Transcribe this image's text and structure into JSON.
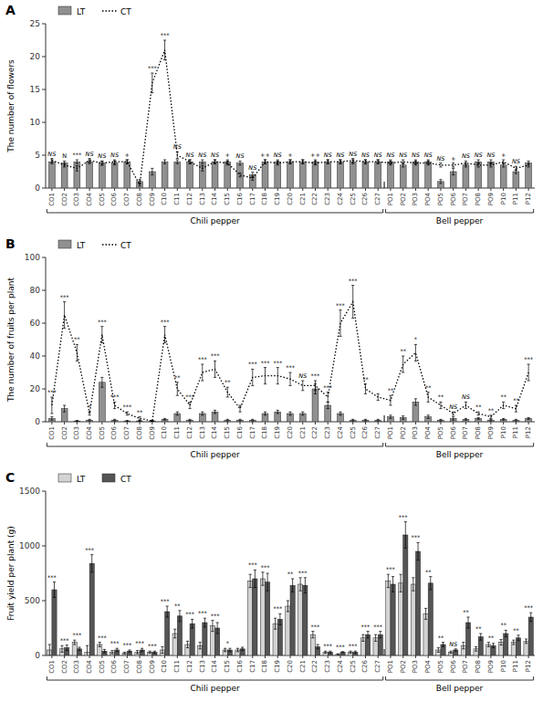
{
  "chart_data": [
    {
      "type": "bar",
      "title": "A",
      "y_label": "The number of flowers",
      "categories": [
        "CO1",
        "CO2",
        "CO3",
        "CO4",
        "CO5",
        "CO6",
        "CO7",
        "CO8",
        "CO9",
        "C10",
        "C11",
        "C12",
        "C13",
        "C14",
        "C15",
        "C16",
        "C17",
        "C18",
        "C19",
        "C20",
        "C21",
        "C22",
        "C23",
        "C24",
        "C25",
        "C26",
        "C27",
        "PO1",
        "PO2",
        "PO3",
        "PO4",
        "PO5",
        "PO6",
        "PO7",
        "PO8",
        "PO9",
        "P10",
        "P11",
        "P12"
      ],
      "series": [
        {
          "name": "LT",
          "type": "bar",
          "color": "#909090",
          "values": [
            4.0,
            3.8,
            4.0,
            4.0,
            3.8,
            3.8,
            4.0,
            1.0,
            2.5,
            4.0,
            4.0,
            4.0,
            4.0,
            4.0,
            4.0,
            3.8,
            2.0,
            4.0,
            4.0,
            4.0,
            4.0,
            4.0,
            4.0,
            4.0,
            4.0,
            4.0,
            4.0,
            4.0,
            3.5,
            4.0,
            4.0,
            1.0,
            2.5,
            3.5,
            4.0,
            4.0,
            3.5,
            2.5,
            3.8
          ],
          "errors": [
            0.3,
            0.3,
            0.3,
            0.3,
            0.3,
            0.3,
            0.3,
            0.3,
            0.5,
            0.3,
            0.3,
            0.3,
            0.3,
            0.3,
            0.3,
            0.3,
            0.4,
            0.3,
            0.3,
            0.3,
            0.3,
            0.3,
            0.3,
            0.3,
            0.3,
            0.3,
            0.3,
            0.3,
            0.3,
            0.3,
            0.3,
            0.3,
            0.5,
            0.3,
            0.3,
            0.3,
            0.3,
            0.3,
            0.3
          ]
        },
        {
          "name": "CT",
          "type": "line",
          "line_style": "dotted",
          "color": "#000000",
          "values": [
            4.2,
            3.5,
            3.0,
            4.2,
            3.8,
            4.0,
            4.0,
            0.5,
            16.0,
            21.0,
            5.0,
            4.0,
            3.0,
            4.0,
            3.8,
            2.0,
            1.5,
            4.0,
            3.8,
            4.0,
            4.0,
            3.8,
            4.0,
            4.0,
            4.2,
            4.0,
            4.0,
            3.8,
            4.0,
            3.8,
            3.8,
            3.5,
            3.5,
            3.8,
            3.5,
            3.5,
            4.0,
            3.0,
            3.5
          ],
          "errors": [
            0.3,
            0.3,
            0.4,
            0.3,
            0.3,
            0.3,
            0.3,
            0.2,
            1.5,
            1.5,
            0.5,
            0.3,
            0.4,
            0.3,
            0.3,
            0.3,
            0.3,
            0.3,
            0.3,
            0.3,
            0.3,
            0.3,
            0.3,
            0.3,
            0.3,
            0.3,
            0.3,
            0.3,
            0.3,
            0.3,
            0.3,
            0.3,
            0.3,
            0.3,
            0.3,
            0.3,
            0.3,
            0.3,
            0.3
          ]
        }
      ],
      "significance": [
        "NS",
        "N",
        "***",
        "NS",
        "NS",
        "NS",
        "+",
        null,
        "***",
        "***",
        "NS",
        "NS",
        "NS",
        "NS",
        "+",
        "NS",
        "NS",
        "++",
        "NS",
        "+",
        null,
        "++",
        "NS",
        "NS",
        "NS",
        "NS",
        "NS",
        "NS",
        "NS",
        "NS",
        "NS",
        "NS",
        "+",
        "NS",
        "NS",
        "NS",
        "+",
        "NS",
        null
      ],
      "groups": [
        {
          "label": "Chili pepper",
          "first": "CO1",
          "last": "C27"
        },
        {
          "label": "Bell pepper",
          "first": "PO1",
          "last": "P12"
        }
      ],
      "ylim": [
        0,
        25
      ],
      "yticks": [
        0,
        5,
        10,
        15,
        20,
        25
      ],
      "grid": false,
      "legend": "upper left"
    },
    {
      "type": "bar",
      "title": "B",
      "y_label": "The number of fruits per plant",
      "categories": [
        "CO1",
        "CO2",
        "CO3",
        "CO4",
        "CO5",
        "CO6",
        "CO7",
        "CO8",
        "CO9",
        "C10",
        "C11",
        "C12",
        "C13",
        "C14",
        "C15",
        "C16",
        "C17",
        "C18",
        "C19",
        "C20",
        "C21",
        "C22",
        "C23",
        "C24",
        "C25",
        "C26",
        "C27",
        "PO1",
        "PO2",
        "PO3",
        "PO4",
        "PO5",
        "PO6",
        "PO7",
        "PO8",
        "PO9",
        "P10",
        "P11",
        "P12"
      ],
      "series": [
        {
          "name": "LT",
          "type": "bar",
          "color": "#909090",
          "values": [
            2.0,
            8.0,
            0.5,
            1.0,
            24.0,
            1.0,
            0.5,
            0.5,
            0.5,
            1.5,
            5.0,
            1.0,
            5.0,
            6.0,
            1.0,
            1.0,
            1.0,
            5.0,
            6.0,
            5.0,
            5.0,
            20.0,
            10.0,
            5.0,
            1.0,
            1.0,
            1.0,
            3.0,
            2.5,
            12.0,
            3.0,
            1.0,
            2.0,
            1.5,
            2.0,
            1.0,
            1.5,
            1.0,
            2.0
          ],
          "errors": [
            1.0,
            2.0,
            0.3,
            0.5,
            3.0,
            0.5,
            0.3,
            0.3,
            0.3,
            0.5,
            1.0,
            0.5,
            1.0,
            1.0,
            0.5,
            0.5,
            0.5,
            1.0,
            1.0,
            1.0,
            1.0,
            3.0,
            2.0,
            1.0,
            0.5,
            0.5,
            0.5,
            1.0,
            1.0,
            2.0,
            1.0,
            0.5,
            1.0,
            0.5,
            0.5,
            0.5,
            0.5,
            0.5,
            0.5
          ]
        },
        {
          "name": "CT",
          "type": "line",
          "line_style": "dotted",
          "color": "#000000",
          "values": [
            10.0,
            65.0,
            42.0,
            5.0,
            53.0,
            10.0,
            5.0,
            2.0,
            0.5,
            53.0,
            20.0,
            10.0,
            30.0,
            32.0,
            18.0,
            8.0,
            27.0,
            28.0,
            28.0,
            26.0,
            22.0,
            22.0,
            15.0,
            60.0,
            73.0,
            20.0,
            15.0,
            13.0,
            35.0,
            42.0,
            15.0,
            10.0,
            5.0,
            10.0,
            5.0,
            3.0,
            10.0,
            8.0,
            30.0
          ],
          "errors": [
            5.0,
            8.0,
            5.0,
            1.0,
            5.0,
            2.0,
            1.0,
            1.0,
            0.3,
            5.0,
            4.0,
            2.0,
            5.0,
            5.0,
            3.0,
            2.0,
            5.0,
            5.0,
            5.0,
            4.0,
            3.0,
            3.0,
            3.0,
            8.0,
            10.0,
            3.0,
            2.0,
            3.0,
            5.0,
            5.0,
            3.0,
            2.0,
            1.0,
            2.0,
            1.0,
            1.0,
            2.0,
            2.0,
            5.0
          ]
        }
      ],
      "significance": [
        "***",
        "***",
        "**",
        "*",
        "***",
        "***",
        "***",
        "**",
        null,
        "***",
        "**",
        "***",
        "***",
        "***",
        "**",
        null,
        "***",
        "***",
        "***",
        "***",
        "NS",
        "***",
        "***",
        "***",
        "***",
        "**",
        null,
        "**",
        "**",
        "*",
        "**",
        "**",
        "NS",
        "NS",
        "**",
        "**",
        "**",
        "**",
        "***"
      ],
      "groups": [
        {
          "label": "Chili pepper",
          "first": "CO1",
          "last": "C27"
        },
        {
          "label": "Bell pepper",
          "first": "PO1",
          "last": "P12"
        }
      ],
      "ylim": [
        0,
        100
      ],
      "yticks": [
        0,
        20,
        40,
        60,
        80,
        100
      ],
      "grid": false,
      "legend": "upper left"
    },
    {
      "type": "bar",
      "title": "C",
      "y_label": "Fruit yield per plant (g)",
      "categories": [
        "CO1",
        "CO2",
        "CO3",
        "CO4",
        "CO5",
        "CO6",
        "CO7",
        "CO8",
        "CO9",
        "C10",
        "C11",
        "C12",
        "C13",
        "C14",
        "C15",
        "C16",
        "C17",
        "C18",
        "C19",
        "C20",
        "C21",
        "C22",
        "C23",
        "C24",
        "C25",
        "C26",
        "C27",
        "PO1",
        "PO2",
        "PO3",
        "PO4",
        "PO5",
        "PO6",
        "PO7",
        "PO8",
        "PO9",
        "P10",
        "P11",
        "P12"
      ],
      "series": [
        {
          "name": "LT",
          "type": "bar",
          "color": "#d3d3d3",
          "values": [
            50.0,
            60.0,
            120.0,
            30.0,
            100.0,
            30.0,
            20.0,
            30.0,
            30.0,
            50.0,
            200.0,
            100.0,
            90.0,
            270.0,
            50.0,
            50.0,
            680.0,
            700.0,
            290.0,
            450.0,
            650.0,
            190.0,
            30.0,
            10.0,
            30.0,
            160.0,
            160.0,
            680.0,
            660.0,
            650.0,
            380.0,
            50.0,
            30.0,
            90.0,
            60.0,
            100.0,
            120.0,
            120.0,
            130.0
          ],
          "errors": [
            50,
            30,
            20,
            60,
            20,
            15,
            10,
            15,
            10,
            30,
            40,
            30,
            30,
            50,
            15,
            15,
            60,
            60,
            50,
            50,
            60,
            30,
            10,
            5,
            10,
            30,
            30,
            60,
            80,
            60,
            50,
            20,
            10,
            30,
            20,
            20,
            25,
            20,
            20
          ]
        },
        {
          "name": "CT",
          "type": "bar",
          "color": "#555555",
          "values": [
            600.0,
            70.0,
            60.0,
            840.0,
            40.0,
            50.0,
            40.0,
            50.0,
            30.0,
            400.0,
            360.0,
            290.0,
            300.0,
            250.0,
            50.0,
            60.0,
            700.0,
            670.0,
            330.0,
            640.0,
            640.0,
            80.0,
            30.0,
            30.0,
            30.0,
            190.0,
            190.0,
            650.0,
            1100.0,
            950.0,
            660.0,
            100.0,
            50.0,
            300.0,
            170.0,
            90.0,
            200.0,
            160.0,
            350.0
          ],
          "errors": [
            70,
            25,
            15,
            80,
            15,
            15,
            10,
            15,
            10,
            50,
            50,
            40,
            40,
            50,
            15,
            15,
            80,
            80,
            50,
            60,
            70,
            20,
            10,
            5,
            10,
            30,
            30,
            70,
            120,
            80,
            60,
            20,
            10,
            50,
            30,
            20,
            30,
            25,
            40
          ]
        }
      ],
      "significance": [
        "***",
        "***",
        "***",
        "***",
        "***",
        "***",
        "***",
        "***",
        "***",
        "***",
        "**",
        "***",
        "***",
        "***",
        "*",
        null,
        "***",
        "***",
        "***",
        "**",
        "***",
        "***",
        "***",
        "***",
        "***",
        "***",
        "***",
        "***",
        "***",
        "***",
        "**",
        "**",
        "NS",
        "**",
        "**",
        "**",
        "**",
        "**",
        "***"
      ],
      "groups": [
        {
          "label": "Chili pepper",
          "first": "CO1",
          "last": "C27"
        },
        {
          "label": "Bell pepper",
          "first": "PO1",
          "last": "P12"
        }
      ],
      "ylim": [
        0,
        1500
      ],
      "yticks": [
        0,
        500,
        1000,
        1500
      ],
      "grid": false,
      "legend": "upper left"
    }
  ]
}
